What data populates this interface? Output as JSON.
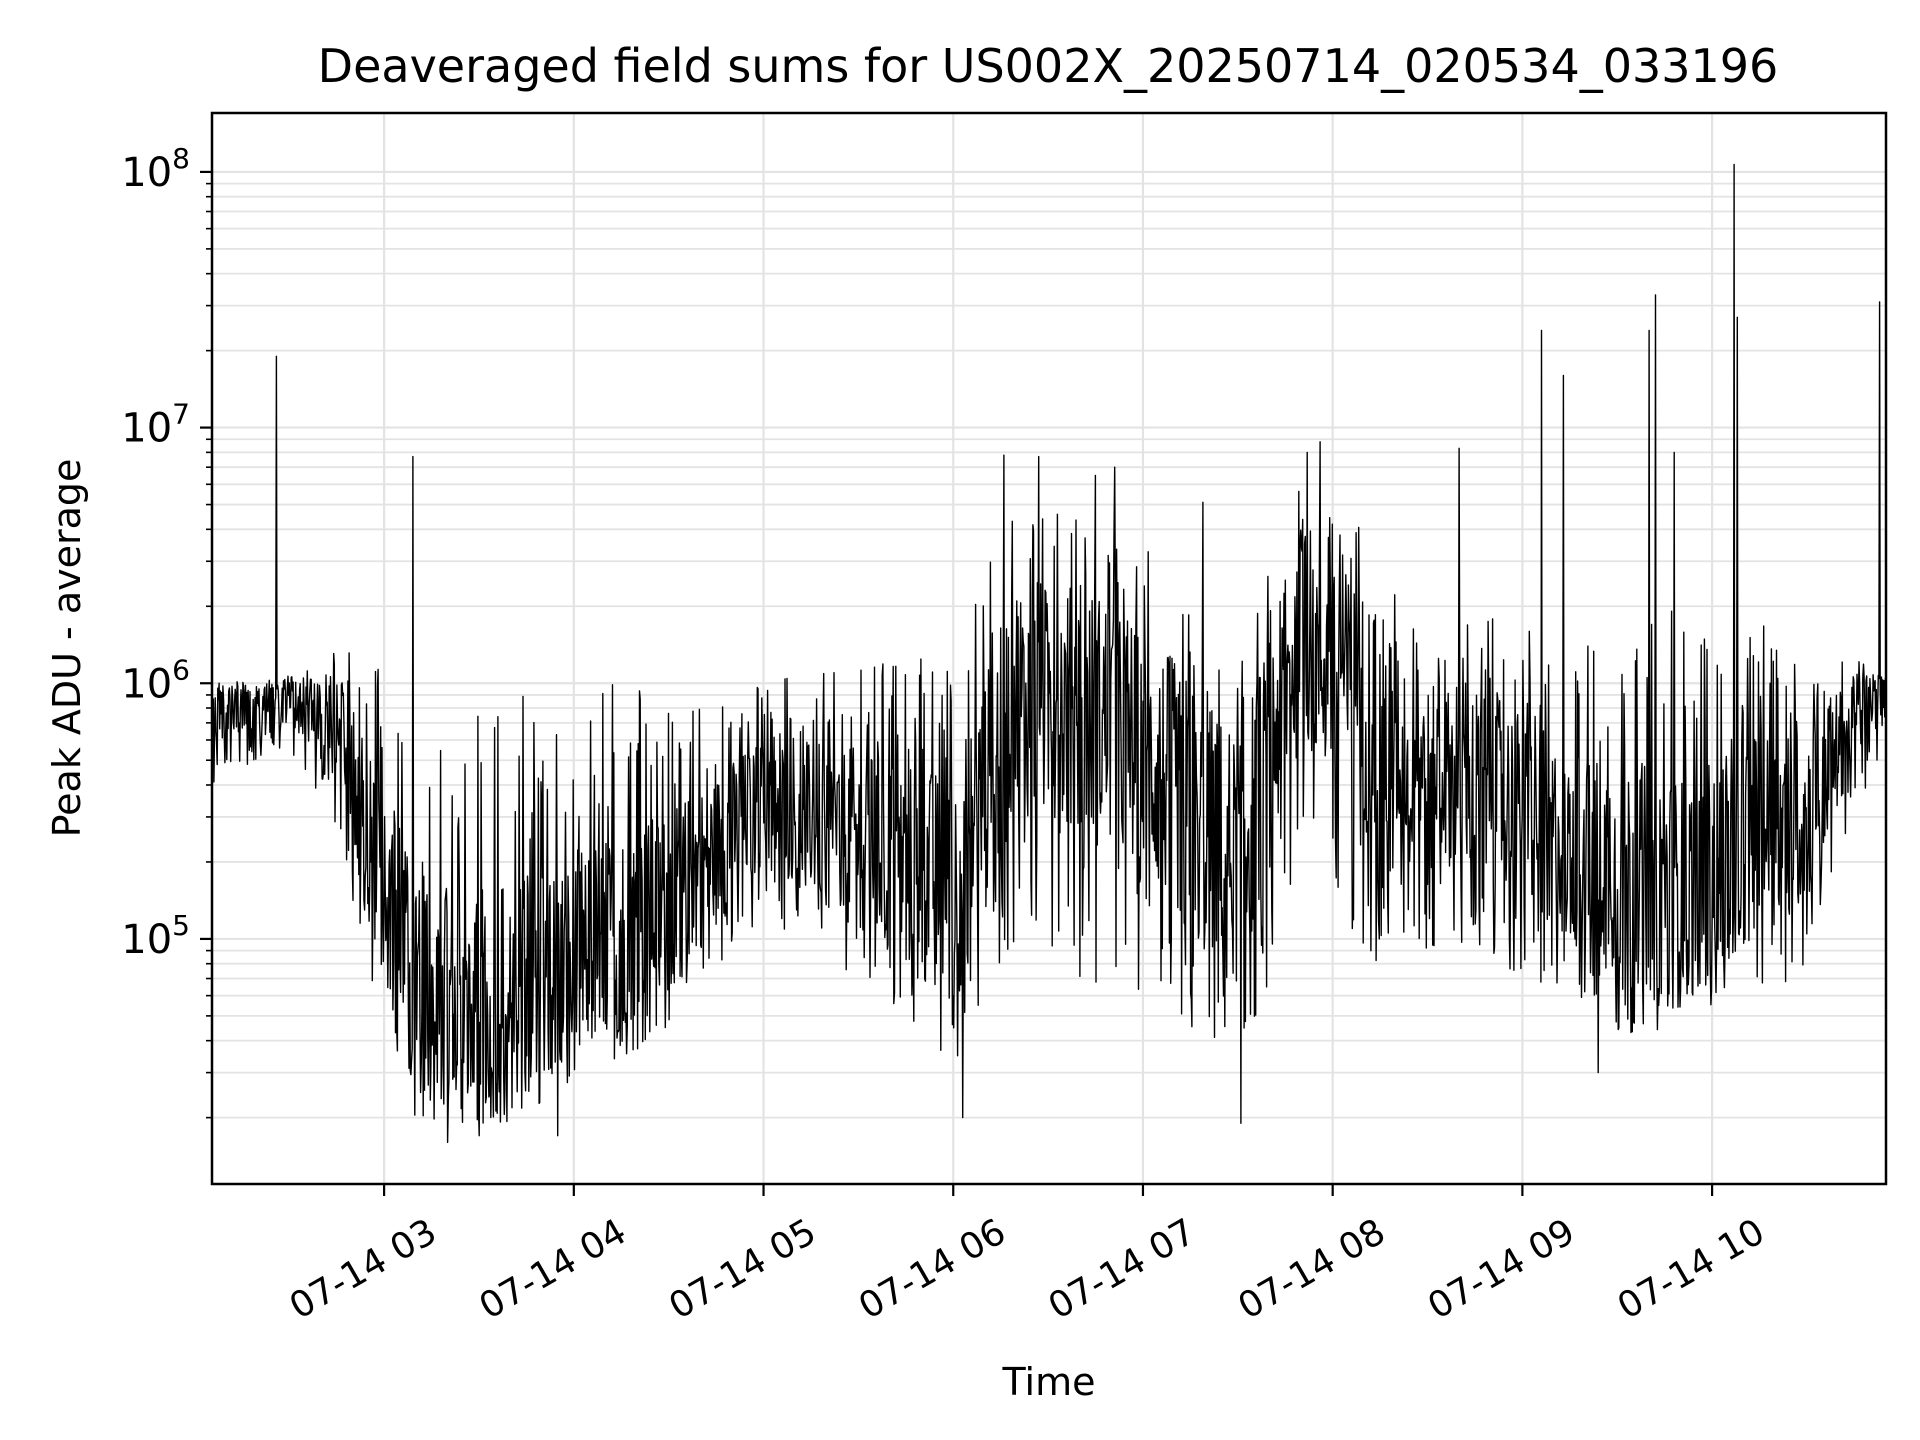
{
  "chart_data": {
    "type": "line",
    "title": "Deaveraged field sums for US002X_20250714_020534_033196",
    "xlabel": "Time",
    "ylabel": "Peak ADU - average",
    "yscale": "log",
    "ylim": [
      11000,
      170000000
    ],
    "xlim": [
      "2025-07-14T02:05:34",
      "2025-07-14T10:55:00"
    ],
    "grid": true,
    "x_tick_labels": [
      "07-14 03",
      "07-14 04",
      "07-14 05",
      "07-14 06",
      "07-14 07",
      "07-14 08",
      "07-14 09",
      "07-14 10"
    ],
    "x_tick_times": [
      "2025-07-14T03:00",
      "2025-07-14T04:00",
      "2025-07-14T05:00",
      "2025-07-14T06:00",
      "2025-07-14T07:00",
      "2025-07-14T08:00",
      "2025-07-14T09:00",
      "2025-07-14T10:00"
    ],
    "y_tick_labels": [
      {
        "base": "10",
        "exp": "5",
        "value": 100000
      },
      {
        "base": "10",
        "exp": "6",
        "value": 1000000
      },
      {
        "base": "10",
        "exp": "7",
        "value": 10000000
      },
      {
        "base": "10",
        "exp": "8",
        "value": 100000000
      }
    ],
    "series": [
      {
        "color": "#000000",
        "envelope": [
          {
            "t": "2025-07-14T02:05",
            "base": 750000,
            "lo": 400000,
            "hi": 1000000
          },
          {
            "t": "2025-07-14T02:30",
            "base": 850000,
            "lo": 550000,
            "hi": 1100000
          },
          {
            "t": "2025-07-14T02:45",
            "base": 700000,
            "lo": 250000,
            "hi": 1500000
          },
          {
            "t": "2025-07-14T02:55",
            "base": 250000,
            "lo": 60000,
            "hi": 1200000
          },
          {
            "t": "2025-07-14T03:10",
            "base": 70000,
            "lo": 20000,
            "hi": 1000000
          },
          {
            "t": "2025-07-14T03:40",
            "base": 55000,
            "lo": 18000,
            "hi": 900000
          },
          {
            "t": "2025-07-14T04:10",
            "base": 100000,
            "lo": 30000,
            "hi": 1000000
          },
          {
            "t": "2025-07-14T04:30",
            "base": 140000,
            "lo": 45000,
            "hi": 900000
          },
          {
            "t": "2025-07-14T05:00",
            "base": 350000,
            "lo": 120000,
            "hi": 1000000
          },
          {
            "t": "2025-07-14T05:30",
            "base": 250000,
            "lo": 70000,
            "hi": 1300000
          },
          {
            "t": "2025-07-14T06:00",
            "base": 150000,
            "lo": 30000,
            "hi": 1500000
          },
          {
            "t": "2025-07-14T06:20",
            "base": 900000,
            "lo": 100000,
            "hi": 5000000
          },
          {
            "t": "2025-07-14T06:50",
            "base": 700000,
            "lo": 60000,
            "hi": 4500000
          },
          {
            "t": "2025-07-14T07:10",
            "base": 400000,
            "lo": 50000,
            "hi": 3000000
          },
          {
            "t": "2025-07-14T07:30",
            "base": 200000,
            "lo": 25000,
            "hi": 1500000
          },
          {
            "t": "2025-07-14T07:50",
            "base": 1500000,
            "lo": 200000,
            "hi": 6000000
          },
          {
            "t": "2025-07-14T08:10",
            "base": 800000,
            "lo": 70000,
            "hi": 4000000
          },
          {
            "t": "2025-07-14T08:30",
            "base": 450000,
            "lo": 90000,
            "hi": 1500000
          },
          {
            "t": "2025-07-14T08:50",
            "base": 400000,
            "lo": 80000,
            "hi": 2000000
          },
          {
            "t": "2025-07-14T09:10",
            "base": 250000,
            "lo": 60000,
            "hi": 1500000
          },
          {
            "t": "2025-07-14T09:30",
            "base": 200000,
            "lo": 40000,
            "hi": 1500000
          },
          {
            "t": "2025-07-14T09:50",
            "base": 150000,
            "lo": 45000,
            "hi": 2000000
          },
          {
            "t": "2025-07-14T10:10",
            "base": 250000,
            "lo": 60000,
            "hi": 2000000
          },
          {
            "t": "2025-07-14T10:30",
            "base": 300000,
            "lo": 70000,
            "hi": 1200000
          },
          {
            "t": "2025-07-14T10:45",
            "base": 750000,
            "lo": 300000,
            "hi": 1300000
          },
          {
            "t": "2025-07-14T10:55",
            "base": 900000,
            "lo": 600000,
            "hi": 1200000
          }
        ],
        "spikes": [
          {
            "t": "2025-07-14T02:26",
            "y": 19000000
          },
          {
            "t": "2025-07-14T03:09",
            "y": 7700000
          },
          {
            "t": "2025-07-14T06:16",
            "y": 7800000
          },
          {
            "t": "2025-07-14T06:27",
            "y": 7700000
          },
          {
            "t": "2025-07-14T06:45",
            "y": 6500000
          },
          {
            "t": "2025-07-14T06:51",
            "y": 7000000
          },
          {
            "t": "2025-07-14T07:19",
            "y": 5100000
          },
          {
            "t": "2025-07-14T07:52",
            "y": 8000000
          },
          {
            "t": "2025-07-14T07:56",
            "y": 8800000
          },
          {
            "t": "2025-07-14T08:40",
            "y": 8300000
          },
          {
            "t": "2025-07-14T09:06",
            "y": 24000000
          },
          {
            "t": "2025-07-14T09:13",
            "y": 16000000
          },
          {
            "t": "2025-07-14T09:40",
            "y": 24000000
          },
          {
            "t": "2025-07-14T09:42",
            "y": 33000000
          },
          {
            "t": "2025-07-14T09:48",
            "y": 8000000
          },
          {
            "t": "2025-07-14T10:07",
            "y": 107000000
          },
          {
            "t": "2025-07-14T10:08",
            "y": 27000000
          },
          {
            "t": "2025-07-14T10:53",
            "y": 31000000
          }
        ],
        "dips": [
          {
            "t": "2025-07-14T03:20",
            "y": 16000.0
          },
          {
            "t": "2025-07-14T03:30",
            "y": 17000
          },
          {
            "t": "2025-07-14T03:55",
            "y": 17000
          },
          {
            "t": "2025-07-14T06:03",
            "y": 20000
          },
          {
            "t": "2025-07-14T07:31",
            "y": 19000
          },
          {
            "t": "2025-07-14T09:24",
            "y": 30000
          }
        ]
      }
    ]
  }
}
